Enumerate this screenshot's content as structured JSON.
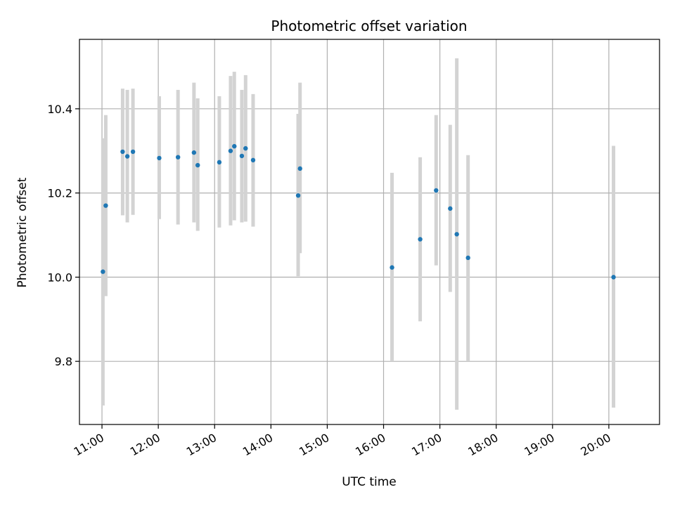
{
  "chart_data": {
    "type": "scatter",
    "title": "Photometric offset variation",
    "xlabel": "UTC time",
    "ylabel": "Photometric offset",
    "x_unit": "UTC time (HH:MM)",
    "xlim": [
      "10:36",
      "20:54"
    ],
    "ylim": [
      9.65,
      10.565
    ],
    "x_ticks": [
      "11:00",
      "12:00",
      "13:00",
      "14:00",
      "15:00",
      "16:00",
      "17:00",
      "18:00",
      "19:00",
      "20:00"
    ],
    "y_ticks": [
      9.8,
      10.0,
      10.2,
      10.4
    ],
    "y_tick_labels": [
      "9.8",
      "10.0",
      "10.2",
      "10.4"
    ],
    "grid": true,
    "x_tick_rotation_deg": 30,
    "colors": {
      "point": "#1f77b4",
      "errorbar": "#d3d3d3",
      "grid": "#b0b0b0"
    },
    "points": [
      {
        "x": "11:01",
        "y": 10.013,
        "err_low": 9.695,
        "err_high": 10.33
      },
      {
        "x": "11:04",
        "y": 10.17,
        "err_low": 9.955,
        "err_high": 10.385
      },
      {
        "x": "11:22",
        "y": 10.298,
        "err_low": 10.147,
        "err_high": 10.448
      },
      {
        "x": "11:27",
        "y": 10.287,
        "err_low": 10.13,
        "err_high": 10.445
      },
      {
        "x": "11:33",
        "y": 10.298,
        "err_low": 10.148,
        "err_high": 10.448
      },
      {
        "x": "12:01",
        "y": 10.283,
        "err_low": 10.138,
        "err_high": 10.43
      },
      {
        "x": "12:21",
        "y": 10.285,
        "err_low": 10.125,
        "err_high": 10.445
      },
      {
        "x": "12:38",
        "y": 10.296,
        "err_low": 10.13,
        "err_high": 10.462
      },
      {
        "x": "12:42",
        "y": 10.266,
        "err_low": 10.11,
        "err_high": 10.425
      },
      {
        "x": "13:05",
        "y": 10.273,
        "err_low": 10.118,
        "err_high": 10.43
      },
      {
        "x": "13:17",
        "y": 10.3,
        "err_low": 10.123,
        "err_high": 10.478
      },
      {
        "x": "13:21",
        "y": 10.311,
        "err_low": 10.135,
        "err_high": 10.488
      },
      {
        "x": "13:29",
        "y": 10.288,
        "err_low": 10.13,
        "err_high": 10.445
      },
      {
        "x": "13:33",
        "y": 10.306,
        "err_low": 10.132,
        "err_high": 10.48
      },
      {
        "x": "13:41",
        "y": 10.278,
        "err_low": 10.12,
        "err_high": 10.435
      },
      {
        "x": "14:29",
        "y": 10.194,
        "err_low": 10.002,
        "err_high": 10.388
      },
      {
        "x": "14:31",
        "y": 10.258,
        "err_low": 10.057,
        "err_high": 10.462
      },
      {
        "x": "16:09",
        "y": 10.023,
        "err_low": 9.8,
        "err_high": 10.248
      },
      {
        "x": "16:39",
        "y": 10.09,
        "err_low": 9.895,
        "err_high": 10.285
      },
      {
        "x": "16:56",
        "y": 10.206,
        "err_low": 10.028,
        "err_high": 10.385
      },
      {
        "x": "17:11",
        "y": 10.163,
        "err_low": 9.965,
        "err_high": 10.362
      },
      {
        "x": "17:18",
        "y": 10.102,
        "err_low": 9.685,
        "err_high": 10.52
      },
      {
        "x": "17:30",
        "y": 10.046,
        "err_low": 9.8,
        "err_high": 10.29
      },
      {
        "x": "20:05",
        "y": 10.0,
        "err_low": 9.69,
        "err_high": 10.312
      }
    ]
  }
}
